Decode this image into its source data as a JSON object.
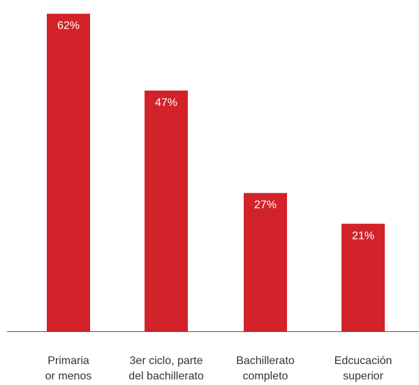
{
  "chart_data": {
    "type": "bar",
    "categories": [
      [
        "Primaria",
        "or menos"
      ],
      [
        "3er ciclo, parte",
        "del bachillerato"
      ],
      [
        "Bachillerato",
        "completo"
      ],
      [
        "Edcucación",
        "superior"
      ]
    ],
    "values": [
      62,
      47,
      27,
      21
    ],
    "value_labels": [
      "62%",
      "47%",
      "27%",
      "21%"
    ],
    "ylim": [
      0,
      64
    ],
    "grid": false,
    "bar_color": "#d2232a",
    "axis_color": "#555555"
  }
}
